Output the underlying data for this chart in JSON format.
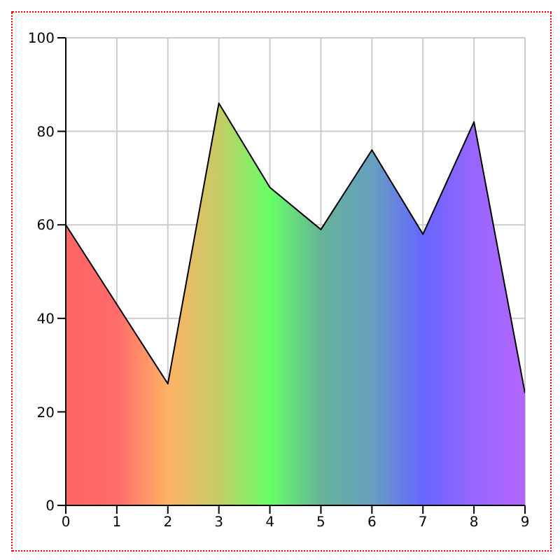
{
  "chart_data": {
    "type": "area",
    "x": [
      0,
      1,
      2,
      3,
      4,
      5,
      6,
      7,
      8,
      9
    ],
    "series": [
      {
        "color": "#000000",
        "values": [
          60,
          43,
          26,
          86,
          68,
          59,
          76,
          58,
          82,
          24
        ]
      }
    ],
    "colors": [
      "#ff6666",
      "#ff6a6a",
      "#ffb366",
      "#c4cc66",
      "#66ff66",
      "#66b399",
      "#66a0c0",
      "#6666ff",
      "#9966ff",
      "#b366ff"
    ],
    "xlim": [
      0,
      9
    ],
    "xticks": [
      0,
      1,
      2,
      3,
      4,
      5,
      6,
      7,
      8,
      9
    ],
    "ylim": [
      0,
      100
    ],
    "yticks": [
      0,
      20,
      40,
      60,
      80,
      100
    ],
    "grid": true,
    "legend": false
  }
}
